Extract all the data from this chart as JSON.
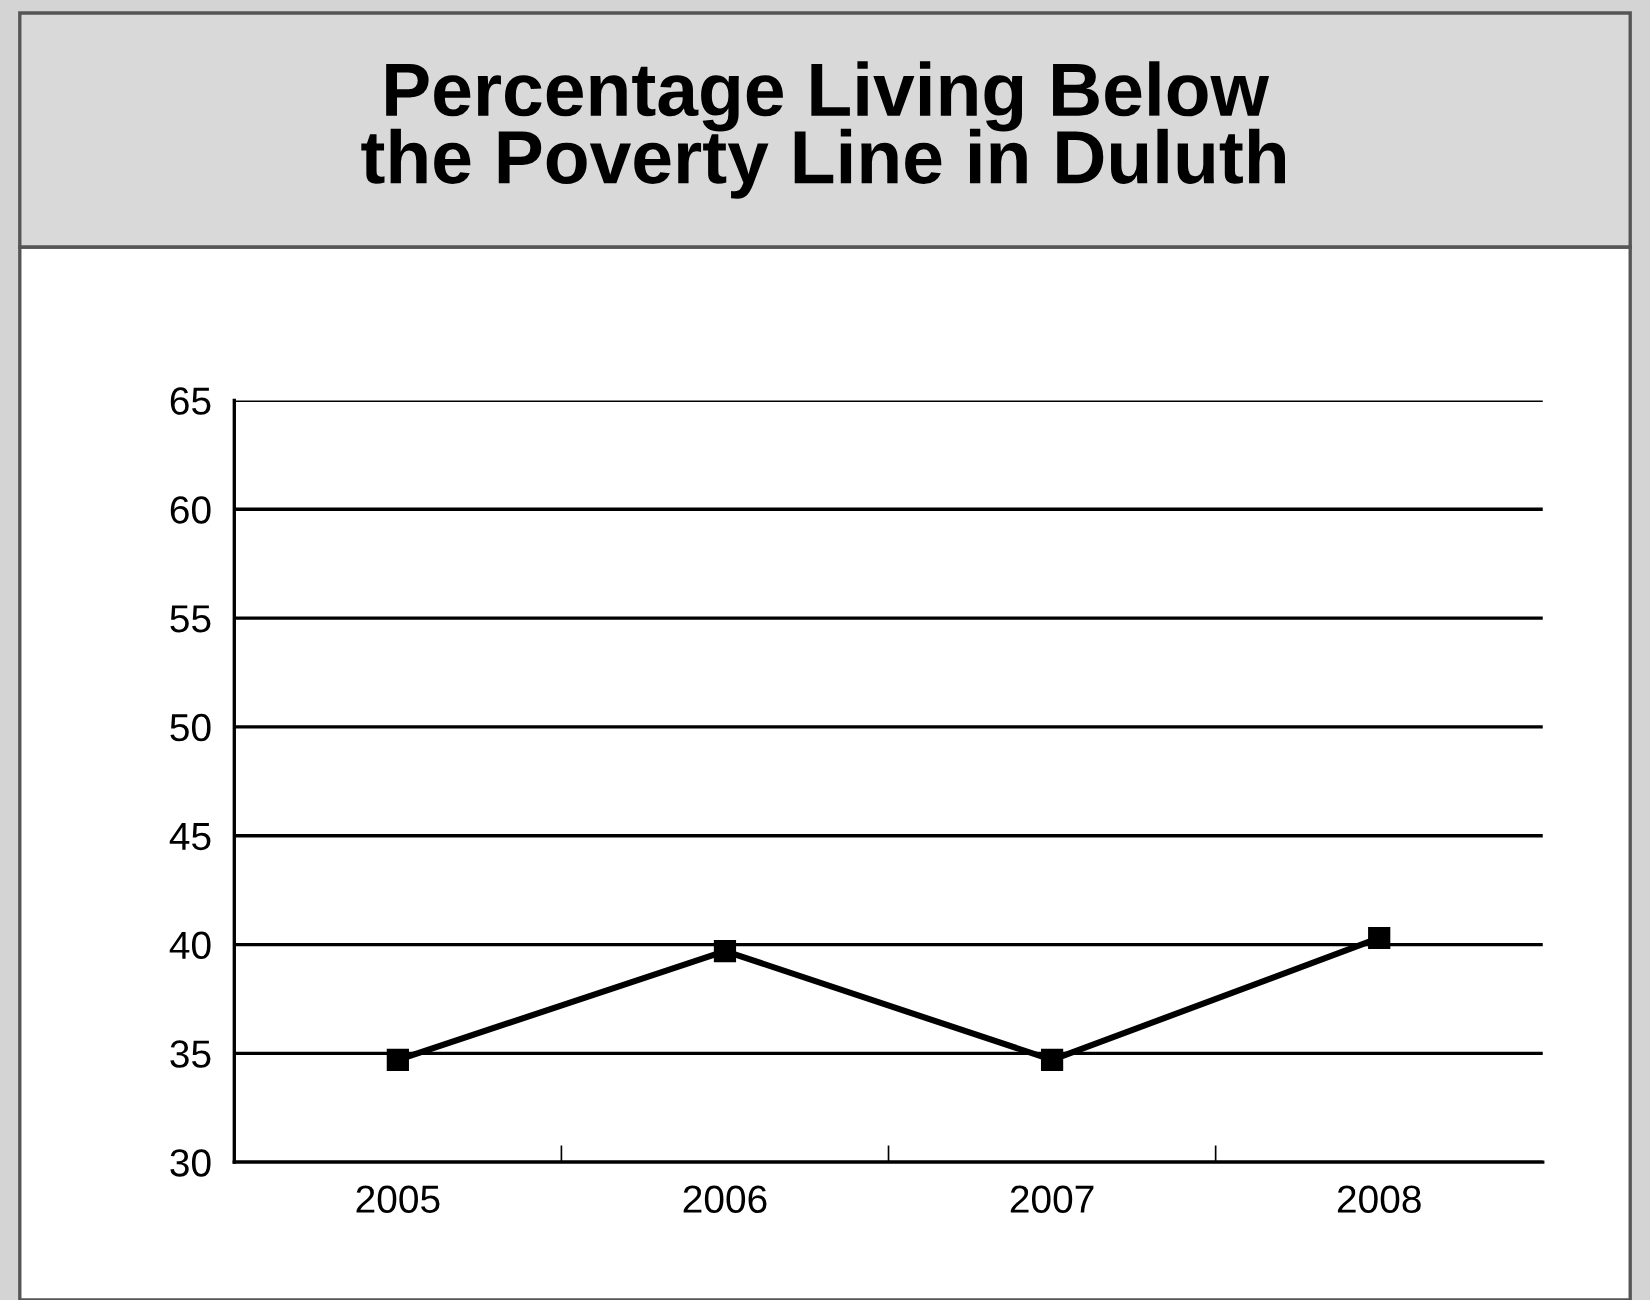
{
  "chart_data": {
    "type": "line",
    "title": "Percentage Living Below\nthe Poverty Line in Duluth",
    "categories": [
      "2005",
      "2006",
      "2007",
      "2008"
    ],
    "series": [
      {
        "color": "#000000",
        "values": [
          34.7,
          39.7,
          34.7,
          40.3
        ]
      }
    ],
    "ylim": [
      30,
      65
    ],
    "yticks": [
      30,
      35,
      40,
      45,
      50,
      55,
      60,
      65
    ],
    "grid": "y",
    "marker": "square",
    "line_style": "solid",
    "legend": false
  }
}
